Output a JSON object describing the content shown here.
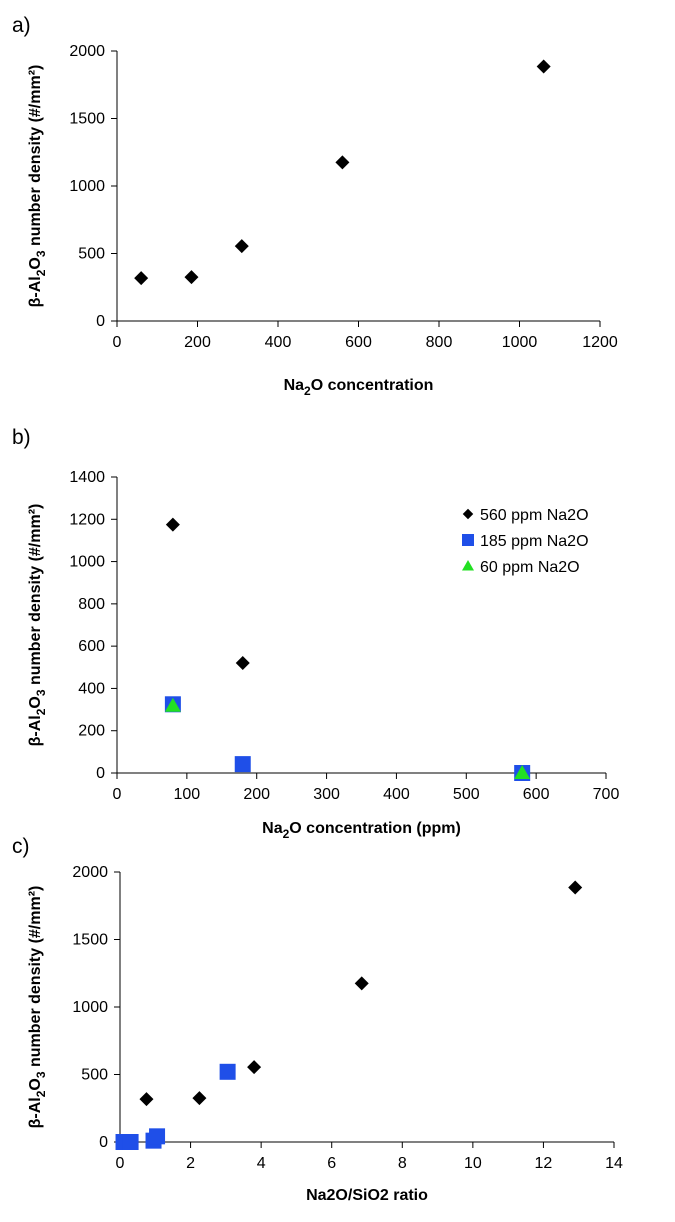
{
  "chart_data": [
    {
      "panel": "a)",
      "type": "scatter",
      "xlabel": {
        "pre": "Na",
        "sub": "2",
        "post": "O concentration"
      },
      "ylabel": {
        "pre": "β-Al",
        "sub1": "2",
        "mid": "O",
        "sub2": "3",
        "post": " number density (#/mm²)"
      },
      "xlim": [
        0,
        1200
      ],
      "ylim": [
        0,
        2000
      ],
      "xticks": [
        0,
        200,
        400,
        600,
        800,
        1000,
        1200
      ],
      "yticks": [
        0,
        500,
        1000,
        1500,
        2000
      ],
      "series": [
        {
          "marker": "diamond",
          "color": "#000000",
          "points": [
            [
              60,
              318
            ],
            [
              185,
              325
            ],
            [
              310,
              555
            ],
            [
              560,
              1175
            ],
            [
              1060,
              1885
            ]
          ]
        }
      ]
    },
    {
      "panel": "b)",
      "type": "scatter",
      "xlabel": {
        "pre": "Na",
        "sub": "2",
        "post": "O concentration (ppm)"
      },
      "ylabel": {
        "pre": "β-Al",
        "sub1": "2",
        "mid": "O",
        "sub2": "3",
        "post": " number density (#/mm²)"
      },
      "xlim": [
        0,
        700
      ],
      "ylim": [
        0,
        1400
      ],
      "xticks": [
        0,
        100,
        200,
        300,
        400,
        500,
        600,
        700
      ],
      "yticks": [
        0,
        200,
        400,
        600,
        800,
        1000,
        1200,
        1400
      ],
      "legend_position": "top-right",
      "series": [
        {
          "name": "560 ppm Na2O",
          "marker": "diamond",
          "color": "#000000",
          "points": [
            [
              80,
              1175
            ],
            [
              180,
              520
            ],
            [
              580,
              0
            ]
          ]
        },
        {
          "name": "185 ppm Na2O",
          "marker": "square",
          "color": "#1f4fe8",
          "points": [
            [
              80,
              325
            ],
            [
              180,
              42
            ],
            [
              580,
              0
            ]
          ]
        },
        {
          "name": "60 ppm Na2O",
          "marker": "triangle",
          "color": "#22e022",
          "points": [
            [
              80,
              318
            ],
            [
              580,
              0
            ]
          ]
        }
      ]
    },
    {
      "panel": "c)",
      "type": "scatter",
      "xlabel": {
        "pre": "Na2O/SiO2 ratio",
        "sub": "",
        "post": ""
      },
      "ylabel": {
        "pre": "β-Al",
        "sub1": "2",
        "mid": "O",
        "sub2": "3",
        "post": " number density (#/mm²)"
      },
      "xlim": [
        0,
        14
      ],
      "ylim": [
        0,
        2000
      ],
      "xticks": [
        0,
        2,
        4,
        6,
        8,
        10,
        12,
        14
      ],
      "yticks": [
        0,
        500,
        1000,
        1500,
        2000
      ],
      "series": [
        {
          "marker": "diamond",
          "color": "#000000",
          "points": [
            [
              0.75,
              318
            ],
            [
              2.25,
              325
            ],
            [
              3.8,
              555
            ],
            [
              6.85,
              1175
            ],
            [
              12.9,
              1885
            ],
            [
              0.1,
              0
            ],
            [
              0.3,
              0
            ]
          ]
        },
        {
          "marker": "square",
          "color": "#1f4fe8",
          "points": [
            [
              0.1,
              0
            ],
            [
              0.3,
              0
            ],
            [
              0.95,
              10
            ],
            [
              1.05,
              42
            ],
            [
              3.05,
              520
            ]
          ]
        }
      ]
    }
  ]
}
